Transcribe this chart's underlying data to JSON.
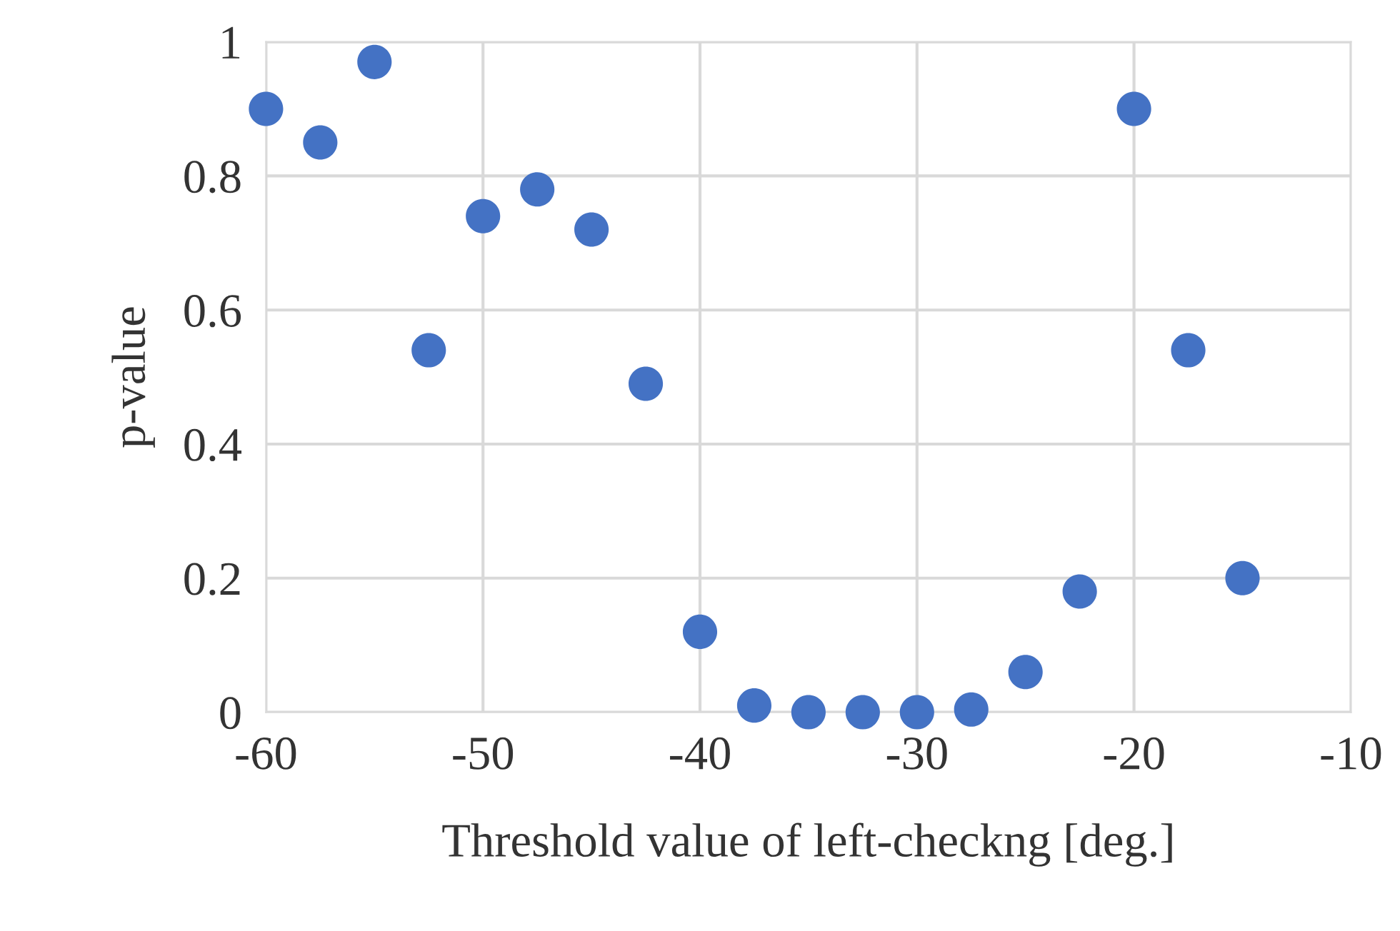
{
  "chart_data": {
    "type": "scatter",
    "xlabel": "Threshold value of left-checkng [deg.]",
    "ylabel": "p-value",
    "x": [
      -60,
      -57.5,
      -55,
      -52.5,
      -50,
      -47.5,
      -45,
      -42.5,
      -40,
      -37.5,
      -35,
      -32.5,
      -30,
      -27.5,
      -25,
      -22.5,
      -20,
      -17.5,
      -15
    ],
    "series": [
      {
        "color": "#4472c4",
        "values": [
          0.9,
          0.85,
          0.97,
          0.54,
          0.74,
          0.78,
          0.72,
          0.49,
          0.12,
          0.01,
          0.0,
          0.0,
          0.0,
          0.004,
          0.06,
          0.18,
          0.9,
          0.54,
          0.2
        ]
      }
    ],
    "xlim": [
      -60,
      -10
    ],
    "xticks": [
      -60,
      -50,
      -40,
      -30,
      -20,
      -10
    ],
    "ylim": [
      0,
      1
    ],
    "yticks": [
      0,
      0.2,
      0.4,
      0.6,
      0.8,
      1
    ],
    "grid": true,
    "marker": "circle"
  }
}
